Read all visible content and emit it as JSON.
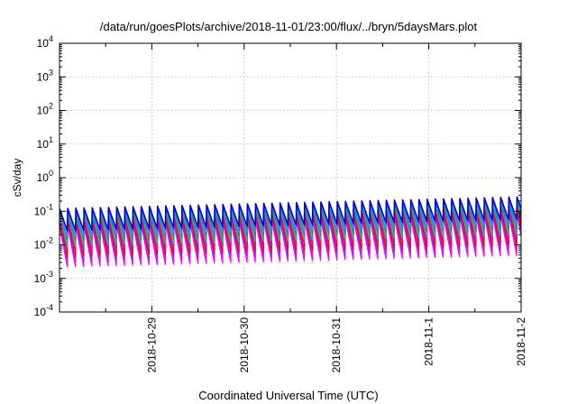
{
  "chart_data": {
    "type": "line",
    "title": "/data/run/goesPlots/archive/2018-11-01/23:00/flux/../bryn/5daysMars.plot",
    "xlabel": "Coordinated Universal Time (UTC)",
    "ylabel": "cSv/day",
    "yscale": "log",
    "ylim": [
      0.0001,
      10000
    ],
    "xlim": [
      "2018-10-28",
      "2018-11-02"
    ],
    "x_ticks": [
      "2018-10-29",
      "2018-10-30",
      "2018-10-31",
      "2018-11-1",
      "2018-11-2"
    ],
    "y_ticks": [
      {
        "base": "10",
        "exp": "4"
      },
      {
        "base": "10",
        "exp": "3"
      },
      {
        "base": "10",
        "exp": "2"
      },
      {
        "base": "10",
        "exp": "1"
      },
      {
        "base": "10",
        "exp": "0"
      },
      {
        "base": "10",
        "exp": "-1"
      },
      {
        "base": "10",
        "exp": "-2"
      },
      {
        "base": "10",
        "exp": "-3"
      },
      {
        "base": "10",
        "exp": "-4"
      }
    ],
    "grid": true,
    "pattern": {
      "periods_per_day": 11.3,
      "trend_per_day": 0.07,
      "description": "sawtooth"
    },
    "series": [
      {
        "color": "#ff00ff",
        "peak": 0.035,
        "trough": 0.0022
      },
      {
        "color": "#a020f0",
        "peak": 0.045,
        "trough": 0.0032
      },
      {
        "color": "#ff0000",
        "peak": 0.055,
        "trough": 0.0045
      },
      {
        "color": "#c71585",
        "peak": 0.07,
        "trough": 0.0065
      },
      {
        "color": "#20b2aa",
        "peak": 0.085,
        "trough": 0.009
      },
      {
        "color": "#2e8b57",
        "peak": 0.1,
        "trough": 0.013
      },
      {
        "color": "#1e90ff",
        "peak": 0.11,
        "trough": 0.018
      },
      {
        "color": "#0000cd",
        "peak": 0.12,
        "trough": 0.026
      }
    ]
  }
}
